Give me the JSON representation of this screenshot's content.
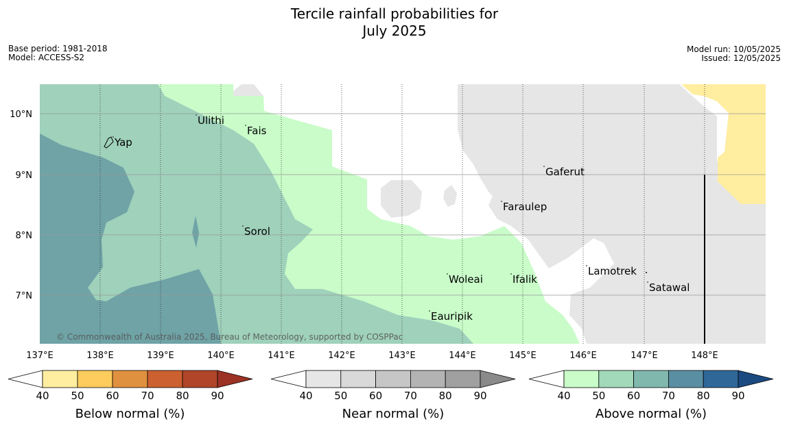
{
  "title_line1": "Tercile rainfall probabilities for",
  "title_line2": "July 2025",
  "meta_left": {
    "base_period": "Base period: 1981-2018",
    "model": "Model: ACCESS-S2"
  },
  "meta_right": {
    "model_run": "Model run: 10/05/2025",
    "issued": "Issued: 12/05/2025"
  },
  "copyright": "© Commonwealth of Australia 2025, Bureau of Meteorology, supported by COSPPac",
  "lon_labels": [
    "137°E",
    "138°E",
    "139°E",
    "140°E",
    "141°E",
    "142°E",
    "143°E",
    "144°E",
    "145°E",
    "146°E",
    "147°E",
    "148°E"
  ],
  "lat_labels": [
    "10°N",
    "9°N",
    "8°N",
    "7°N"
  ],
  "places": [
    {
      "name": "Ulithi"
    },
    {
      "name": "Fais"
    },
    {
      "name": "Yap"
    },
    {
      "name": "Gaferut"
    },
    {
      "name": "Faraulep"
    },
    {
      "name": "Sorol"
    },
    {
      "name": "Woleai"
    },
    {
      "name": "Ifalik"
    },
    {
      "name": "Lamotrek"
    },
    {
      "name": "Satawal"
    },
    {
      "name": "Eauripik"
    }
  ],
  "colorbars": [
    {
      "label": "Below normal (%)",
      "ticks": [
        "40",
        "50",
        "60",
        "70",
        "80",
        "90"
      ],
      "colors": [
        "#ffffff",
        "#ffeda0",
        "#fecc5c",
        "#e0913f",
        "#cc6030",
        "#b0452a",
        "#9b3224"
      ]
    },
    {
      "label": "Near normal (%)",
      "ticks": [
        "40",
        "50",
        "60",
        "70",
        "80",
        "90"
      ],
      "colors": [
        "#ffffff",
        "#e6e6e6",
        "#d9d9d9",
        "#c6c6c6",
        "#b3b3b3",
        "#a0a0a0",
        "#8a8a8a"
      ]
    },
    {
      "label": "Above normal (%)",
      "ticks": [
        "40",
        "50",
        "60",
        "70",
        "80",
        "90"
      ],
      "colors": [
        "#ffffff",
        "#c9fcc9",
        "#a3d9bb",
        "#80b8ad",
        "#5a8fa3",
        "#2f6898",
        "#1a4a80"
      ]
    }
  ],
  "colors": {
    "above_40_50": "#c9fcc9",
    "above_50_60": "#9fd1bb",
    "above_60_70": "#6fa3a6",
    "near_40_50": "#e6e6e6",
    "below_40_50": "#ffeda0",
    "grid": "#999999"
  }
}
